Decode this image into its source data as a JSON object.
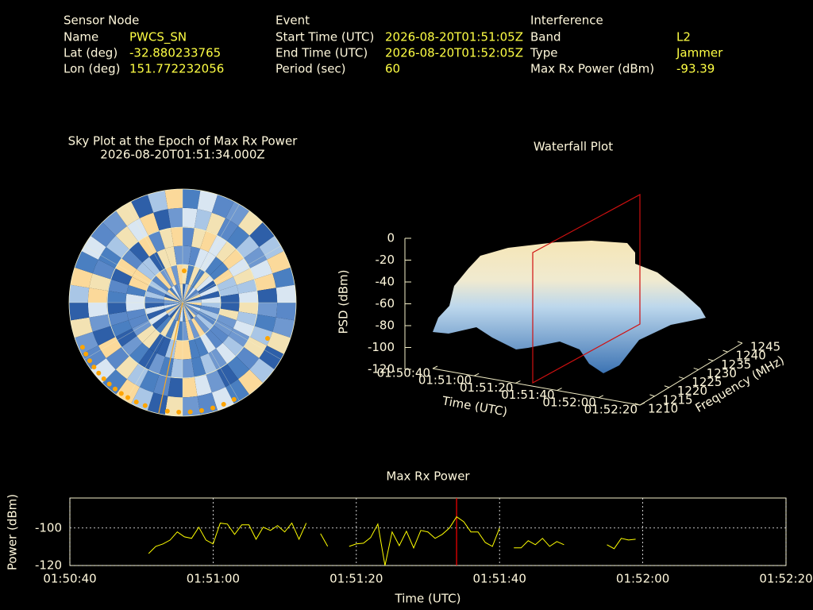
{
  "header": {
    "sensor_node": {
      "title": "Sensor Node",
      "rows": [
        [
          "Name",
          "PWCS_SN"
        ],
        [
          "Lat (deg)",
          "-32.880233765"
        ],
        [
          "Lon (deg)",
          "151.772232056"
        ]
      ]
    },
    "event": {
      "title": "Event",
      "rows": [
        [
          "Start Time (UTC)",
          "2026-08-20T01:51:05Z"
        ],
        [
          "End Time (UTC)",
          "2026-08-20T01:52:05Z"
        ],
        [
          "Period (sec)",
          "60"
        ]
      ]
    },
    "interference": {
      "title": "Interference",
      "rows": [
        [
          "Band",
          "L2"
        ],
        [
          "Type",
          "Jammer"
        ],
        [
          "Max Rx Power (dBm)",
          "-93.39"
        ]
      ]
    }
  },
  "chart_data": [
    {
      "type": "polar-heatmap",
      "title": "Sky Plot at the Epoch of Max Rx Power",
      "subtitle": "2026-08-20T01:51:34.000Z"
    },
    {
      "type": "surface3d",
      "title": "Waterfall Plot",
      "x_label": "Time (UTC)",
      "y_label": "Frequency (MHz)",
      "z_label": "PSD (dBm)",
      "xlim": [
        "01:50:40",
        "01:52:20"
      ],
      "xticks": [
        "01:50:40",
        "01:51:00",
        "01:51:20",
        "01:51:40",
        "01:52:00",
        "01:52:20"
      ],
      "ylim": [
        1210,
        1245
      ],
      "yticks": [
        1210,
        1215,
        1220,
        1225,
        1230,
        1235,
        1240,
        1245
      ],
      "zlim": [
        -120,
        0
      ],
      "zticks": [
        0,
        -20,
        -40,
        -60,
        -80,
        -100,
        -120
      ]
    },
    {
      "type": "line",
      "title": "Max Rx Power",
      "x_label": "Time (UTC)",
      "y_label": "Power (dBm)",
      "x": [
        "01:50:51",
        "01:50:52",
        "01:50:53",
        "01:50:54",
        "01:50:55",
        "01:50:56",
        "01:50:57",
        "01:50:58",
        "01:50:59",
        "01:51:00",
        "01:51:01",
        "01:51:02",
        "01:51:03",
        "01:51:04",
        "01:51:05",
        "01:51:06",
        "01:51:07",
        "01:51:08",
        "01:51:09",
        "01:51:10",
        "01:51:11",
        "01:51:12",
        "01:51:13",
        "01:51:14",
        "01:51:15",
        "01:51:16",
        "01:51:17",
        "01:51:18",
        "01:51:19",
        "01:51:20",
        "01:51:21",
        "01:51:22",
        "01:51:23",
        "01:51:24",
        "01:51:25",
        "01:51:26",
        "01:51:27",
        "01:51:28",
        "01:51:29",
        "01:51:30",
        "01:51:31",
        "01:51:32",
        "01:51:33",
        "01:51:34",
        "01:51:35",
        "01:51:36",
        "01:51:37",
        "01:51:38",
        "01:51:39",
        "01:51:40",
        "01:51:41",
        "01:51:42",
        "01:51:43",
        "01:51:44",
        "01:51:45",
        "01:51:46",
        "01:51:47",
        "01:51:48",
        "01:51:49",
        "01:51:50",
        "01:51:51",
        "01:51:52",
        "01:51:53",
        "01:51:54",
        "01:51:55",
        "01:51:56",
        "01:51:57",
        "01:51:58",
        "01:51:59"
      ],
      "series": [
        {
          "color": "#ffff00",
          "values": [
            -113.6,
            -109.8,
            -108.5,
            -106.4,
            -102.1,
            -104.7,
            -105.5,
            -99.6,
            -106.4,
            -108.5,
            -97.4,
            -97.9,
            -103.4,
            -98.3,
            -98.3,
            -106,
            -99.6,
            -101.3,
            -98.7,
            -102.1,
            -97.4,
            -106,
            -97.4,
            null,
            -103,
            -109.8,
            null,
            null,
            -109.8,
            -108.5,
            -108.1,
            -105.1,
            -97.9,
            -120,
            -102.1,
            -109.4,
            -101.7,
            -110.6,
            -101.3,
            -102.1,
            -105.5,
            -103.4,
            -100,
            -94,
            -96.6,
            -102.1,
            -102.1,
            -107.7,
            -109.8,
            -100,
            null,
            -110.6,
            -110.6,
            -106.8,
            -108.9,
            -105.5,
            -109.8,
            -107.2,
            -108.9,
            null,
            null,
            null,
            null,
            null,
            -108.9,
            -111,
            -105.5,
            -106.4,
            -106
          ]
        }
      ],
      "xlim": [
        "01:50:40",
        "01:52:20"
      ],
      "xticks": [
        "01:50:40",
        "01:51:00",
        "01:51:20",
        "01:51:40",
        "01:52:00",
        "01:52:20"
      ],
      "ylim": [
        -120,
        -84
      ],
      "yticks": [
        -100,
        -120
      ],
      "grid": true,
      "marker_x": "01:51:34",
      "marker_color": "#ff0000"
    }
  ]
}
